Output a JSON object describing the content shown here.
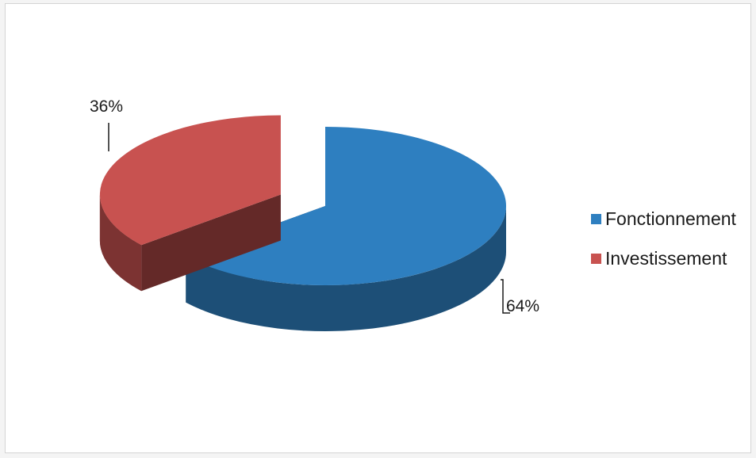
{
  "chart_data": {
    "type": "pie",
    "three_d": true,
    "exploded": true,
    "slices": [
      {
        "name": "Fonctionnement",
        "value": 64,
        "label": "64%",
        "color": "#2e7fc0"
      },
      {
        "name": "Investissement",
        "value": 36,
        "label": "36%",
        "color": "#c85250"
      }
    ],
    "legend_position": "right"
  }
}
